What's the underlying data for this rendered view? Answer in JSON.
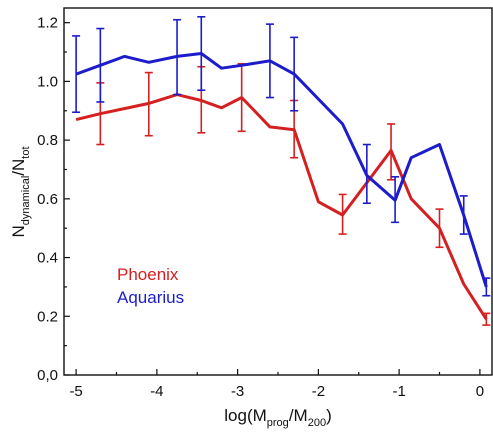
{
  "chart_data": {
    "type": "line",
    "title": "",
    "xlabel": {
      "prefix": "log(M",
      "sub1": "prog",
      "mid": "/M",
      "sub2": "200",
      "suffix": ")"
    },
    "ylabel": {
      "prefix": "N",
      "sub1": "dynamical",
      "mid": "/N",
      "sub2": "tot"
    },
    "xlim": [
      -5.15,
      0.15
    ],
    "ylim": [
      0.0,
      1.25
    ],
    "grid": false,
    "legend_position": "middle-left",
    "x_ticks": [
      {
        "value": -5,
        "label": "-5"
      },
      {
        "value": -4,
        "label": "-4"
      },
      {
        "value": -3,
        "label": "-3"
      },
      {
        "value": -2,
        "label": "-2"
      },
      {
        "value": -1,
        "label": "-1"
      },
      {
        "value": 0,
        "label": "0"
      }
    ],
    "y_ticks": [
      {
        "value": 0.0,
        "label": "0,0"
      },
      {
        "value": 0.2,
        "label": "0.2"
      },
      {
        "value": 0.4,
        "label": "0.4"
      },
      {
        "value": 0.6,
        "label": "0.6"
      },
      {
        "value": 0.8,
        "label": "0.8"
      },
      {
        "value": 1.0,
        "label": "1.0"
      },
      {
        "value": 1.2,
        "label": "1.2"
      }
    ],
    "series": [
      {
        "name": "Phoenix",
        "color": "#d42020",
        "points": [
          {
            "x": -5.0,
            "y": 0.87
          },
          {
            "x": -4.7,
            "y": 0.89,
            "err_low": 0.785,
            "err_high": 0.995
          },
          {
            "x": -4.1,
            "y": 0.925,
            "err_low": 0.815,
            "err_high": 1.03
          },
          {
            "x": -3.75,
            "y": 0.955
          },
          {
            "x": -3.45,
            "y": 0.935,
            "err_low": 0.825,
            "err_high": 1.05
          },
          {
            "x": -3.2,
            "y": 0.91
          },
          {
            "x": -2.95,
            "y": 0.945,
            "err_low": 0.83,
            "err_high": 1.06
          },
          {
            "x": -2.6,
            "y": 0.845
          },
          {
            "x": -2.3,
            "y": 0.835,
            "err_low": 0.74,
            "err_high": 0.935
          },
          {
            "x": -2.0,
            "y": 0.59
          },
          {
            "x": -1.7,
            "y": 0.545,
            "err_low": 0.48,
            "err_high": 0.615
          },
          {
            "x": -1.1,
            "y": 0.765,
            "err_low": 0.665,
            "err_high": 0.855
          },
          {
            "x": -0.85,
            "y": 0.6
          },
          {
            "x": -0.5,
            "y": 0.5,
            "err_low": 0.435,
            "err_high": 0.565
          },
          {
            "x": -0.2,
            "y": 0.31
          },
          {
            "x": 0.08,
            "y": 0.19,
            "err_low": 0.17,
            "err_high": 0.21
          }
        ]
      },
      {
        "name": "Aquarius",
        "color": "#1c1ccc",
        "points": [
          {
            "x": -5.0,
            "y": 1.025,
            "err_low": 0.895,
            "err_high": 1.155
          },
          {
            "x": -4.7,
            "y": 1.055,
            "err_low": 0.93,
            "err_high": 1.18
          },
          {
            "x": -4.4,
            "y": 1.085
          },
          {
            "x": -4.1,
            "y": 1.065
          },
          {
            "x": -3.75,
            "y": 1.085,
            "err_low": 0.955,
            "err_high": 1.21
          },
          {
            "x": -3.45,
            "y": 1.095,
            "err_low": 0.97,
            "err_high": 1.22
          },
          {
            "x": -3.2,
            "y": 1.045
          },
          {
            "x": -2.95,
            "y": 1.055
          },
          {
            "x": -2.6,
            "y": 1.07,
            "err_low": 0.945,
            "err_high": 1.195
          },
          {
            "x": -2.3,
            "y": 1.025,
            "err_low": 0.9,
            "err_high": 1.15
          },
          {
            "x": -1.7,
            "y": 0.855
          },
          {
            "x": -1.4,
            "y": 0.68,
            "err_low": 0.585,
            "err_high": 0.785
          },
          {
            "x": -1.05,
            "y": 0.595,
            "err_low": 0.52,
            "err_high": 0.675
          },
          {
            "x": -0.85,
            "y": 0.74
          },
          {
            "x": -0.5,
            "y": 0.785
          },
          {
            "x": -0.2,
            "y": 0.545,
            "err_low": 0.48,
            "err_high": 0.61
          },
          {
            "x": 0.08,
            "y": 0.3,
            "err_low": 0.27,
            "err_high": 0.33
          }
        ]
      }
    ]
  }
}
